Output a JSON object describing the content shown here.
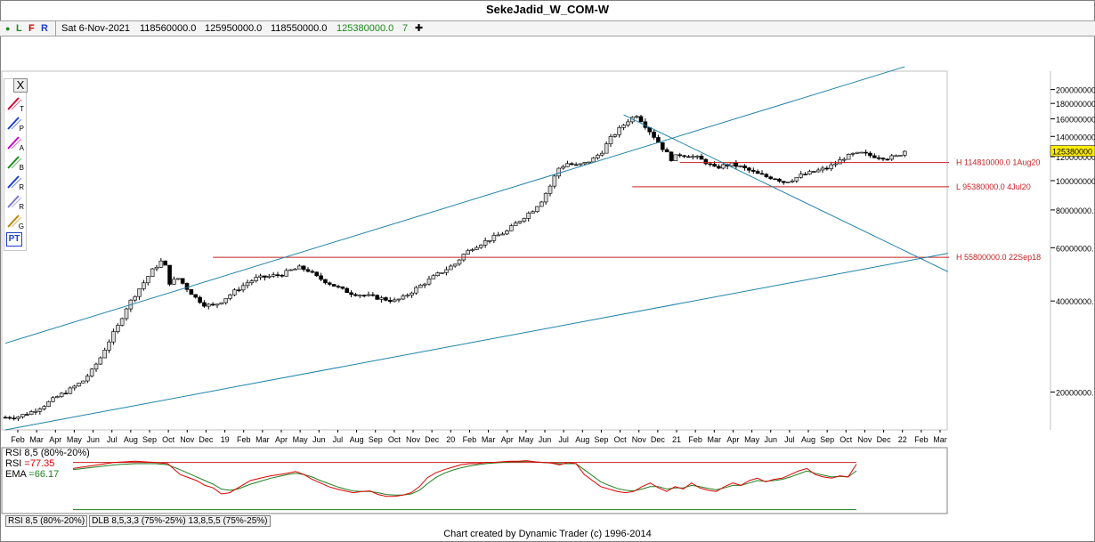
{
  "window": {
    "title": "SekeJadid_W_COM-W",
    "credit": "Chart created by Dynamic Trader  (c) 1996-2014"
  },
  "status_bar": {
    "flags": {
      "dot": "●",
      "l": "L",
      "f": "F",
      "r": "R"
    },
    "date": "Sat 6-Nov-2021",
    "open": "118560000.0",
    "high": "125950000.0",
    "low": "118550000.0",
    "close": "125380000.0",
    "count": "7",
    "plus": "✚"
  },
  "toolbox": {
    "close_label": "X",
    "tools": [
      {
        "icon": "trendline-tool-icon",
        "letter": "T",
        "color": "#cc0033"
      },
      {
        "icon": "parallel-lines-tool-icon",
        "letter": "P",
        "color": "#1a3fcc"
      },
      {
        "icon": "andrews-pitchfork-tool-icon",
        "letter": "A",
        "color": "#cc00cc"
      },
      {
        "icon": "time-band-tool-icon",
        "letter": "B",
        "color": "#1a8c1a"
      },
      {
        "icon": "retracement-tool-icon",
        "letter": "R",
        "color": "#1a3fcc"
      },
      {
        "icon": "ratio-lines-tool-icon",
        "letter": "R",
        "color": "#7777cc"
      },
      {
        "icon": "gann-fan-tool-icon",
        "letter": "G",
        "color": "#b8860b"
      },
      {
        "icon": "pt-tool-icon",
        "letter": "PT",
        "color": "#1a3fcc"
      }
    ]
  },
  "colors": {
    "channel": "#1f82a8",
    "level": "#c82020",
    "candle_up": "#d8d8d8",
    "candle_down": "#000000",
    "rsi": "#e00000",
    "ema": "#208020",
    "price_box": "#ffee00"
  },
  "annotations": {
    "level_h1": "H 114810000.0 1Aug20",
    "level_l1": "L 95380000.0 4Jul20",
    "level_h2": "H 55800000.0 22Sep18"
  },
  "rsi_panel": {
    "title": "RSI 8,5 (80%-20%)",
    "rsi_label": "RSI",
    "rsi_value": "=77.35",
    "ema_label": "EMA",
    "ema_value": "=66.17"
  },
  "bottom_tabs": [
    "RSI 8,5 (80%-20%)",
    "DLB 8,5,3,3 (75%-25%) 13,8,5,5 (75%-25%)"
  ],
  "chart_data": {
    "type": "candlestick",
    "title": "SekeJadid_W_COM-W",
    "y_scale": "log",
    "ylim": [
      15000000,
      230000000
    ],
    "y_ticks": [
      {
        "v": 200000000,
        "label": "200000000"
      },
      {
        "v": 180000000,
        "label": "180000000"
      },
      {
        "v": 160000000,
        "label": "160000000"
      },
      {
        "v": 140000000,
        "label": "140000000"
      },
      {
        "v": 120000000,
        "label": "120000000"
      },
      {
        "v": 100000000,
        "label": "100000000"
      },
      {
        "v": 80000000,
        "label": "80000000."
      },
      {
        "v": 60000000,
        "label": "60000000."
      },
      {
        "v": 40000000,
        "label": "40000000."
      },
      {
        "v": 20000000,
        "label": "20000000."
      }
    ],
    "last_price": {
      "value": 125380000,
      "label": "125380000"
    },
    "x_labels": [
      "Feb",
      "Mar",
      "Apr",
      "May",
      "Jun",
      "Jul",
      "Aug",
      "Sep",
      "Oct",
      "Nov",
      "Dec",
      "19",
      "Feb",
      "Mar",
      "Apr",
      "May",
      "Jun",
      "Jul",
      "Aug",
      "Sep",
      "Oct",
      "Nov",
      "Dec",
      "20",
      "Feb",
      "Mar",
      "Apr",
      "May",
      "Jun",
      "Jul",
      "Aug",
      "Sep",
      "Oct",
      "Nov",
      "Dec",
      "21",
      "Feb",
      "Mar",
      "Apr",
      "May",
      "Jun",
      "Jul",
      "Aug",
      "Sep",
      "Oct",
      "Nov",
      "Dec",
      "22",
      "Feb",
      "Mar"
    ],
    "weeks": 218,
    "series_close": [
      [
        0,
        16.5
      ],
      [
        3,
        16.6
      ],
      [
        6,
        17.2
      ],
      [
        9,
        18.1
      ],
      [
        12,
        19.3
      ],
      [
        15,
        20.4
      ],
      [
        18,
        21.8
      ],
      [
        20,
        23.5
      ],
      [
        22,
        26
      ],
      [
        24,
        29.5
      ],
      [
        26,
        33
      ],
      [
        28,
        38
      ],
      [
        30,
        42
      ],
      [
        32,
        46
      ],
      [
        34,
        50.5
      ],
      [
        36,
        54
      ],
      [
        37,
        52
      ],
      [
        38,
        46
      ],
      [
        40,
        47.5
      ],
      [
        42,
        44
      ],
      [
        44,
        41
      ],
      [
        46,
        39
      ],
      [
        48,
        38.5
      ],
      [
        50,
        40
      ],
      [
        52,
        42
      ],
      [
        54,
        44
      ],
      [
        56,
        46
      ],
      [
        58,
        47.5
      ],
      [
        60,
        48
      ],
      [
        62,
        48.5
      ],
      [
        64,
        49
      ],
      [
        66,
        50.5
      ],
      [
        68,
        51.5
      ],
      [
        70,
        50.5
      ],
      [
        72,
        48
      ],
      [
        74,
        46.5
      ],
      [
        76,
        45
      ],
      [
        78,
        43.5
      ],
      [
        80,
        42.5
      ],
      [
        82,
        42
      ],
      [
        84,
        41.5
      ],
      [
        86,
        41
      ],
      [
        88,
        40.5
      ],
      [
        90,
        40
      ],
      [
        92,
        41
      ],
      [
        94,
        43
      ],
      [
        96,
        45
      ],
      [
        98,
        47
      ],
      [
        100,
        49
      ],
      [
        102,
        51
      ],
      [
        104,
        53
      ],
      [
        106,
        57
      ],
      [
        108,
        60
      ],
      [
        110,
        62
      ],
      [
        112,
        64
      ],
      [
        114,
        66
      ],
      [
        116,
        68
      ],
      [
        118,
        72
      ],
      [
        120,
        76
      ],
      [
        122,
        80
      ],
      [
        124,
        86
      ],
      [
        126,
        96
      ],
      [
        128,
        110
      ],
      [
        130,
        114
      ],
      [
        132,
        112
      ],
      [
        134,
        114
      ],
      [
        136,
        118
      ],
      [
        138,
        125
      ],
      [
        140,
        138
      ],
      [
        142,
        148
      ],
      [
        144,
        158
      ],
      [
        146,
        165
      ],
      [
        148,
        152
      ],
      [
        150,
        140
      ],
      [
        152,
        128
      ],
      [
        154,
        118
      ],
      [
        156,
        122
      ],
      [
        158,
        121
      ],
      [
        160,
        119
      ],
      [
        162,
        115
      ],
      [
        164,
        110
      ],
      [
        166,
        112
      ],
      [
        168,
        113
      ],
      [
        170,
        111
      ],
      [
        172,
        108
      ],
      [
        174,
        105
      ],
      [
        176,
        103
      ],
      [
        178,
        102
      ],
      [
        180,
        99
      ],
      [
        182,
        101
      ],
      [
        184,
        104
      ],
      [
        186,
        106
      ],
      [
        188,
        108
      ],
      [
        190,
        110
      ],
      [
        192,
        114
      ],
      [
        194,
        119
      ],
      [
        196,
        122
      ],
      [
        198,
        123
      ],
      [
        200,
        121
      ],
      [
        202,
        120
      ],
      [
        204,
        119
      ],
      [
        206,
        120
      ],
      [
        208,
        125.4
      ]
    ],
    "levels": [
      {
        "value": 114810000,
        "label": "H 114810000.0 1Aug20"
      },
      {
        "value": 95380000,
        "label": "L 95380000.0 4Jul20"
      },
      {
        "value": 55800000,
        "label": "H 55800000.0 22Sep18"
      }
    ],
    "rsi": {
      "ylim": [
        0,
        100
      ],
      "bands": [
        80,
        20
      ],
      "rsi_last": 77.35,
      "ema_last": 66.17,
      "rsi": [
        [
          0,
          70
        ],
        [
          5,
          75
        ],
        [
          10,
          80
        ],
        [
          15,
          82
        ],
        [
          20,
          80
        ],
        [
          23,
          78
        ],
        [
          26,
          60
        ],
        [
          28,
          55
        ],
        [
          30,
          50
        ],
        [
          32,
          42
        ],
        [
          34,
          38
        ],
        [
          36,
          28
        ],
        [
          38,
          30
        ],
        [
          40,
          38
        ],
        [
          43,
          50
        ],
        [
          46,
          55
        ],
        [
          48,
          58
        ],
        [
          50,
          60
        ],
        [
          52,
          62
        ],
        [
          54,
          65
        ],
        [
          56,
          60
        ],
        [
          58,
          52
        ],
        [
          60,
          46
        ],
        [
          62,
          40
        ],
        [
          64,
          36
        ],
        [
          66,
          33
        ],
        [
          68,
          30
        ],
        [
          70,
          32
        ],
        [
          72,
          33
        ],
        [
          74,
          27
        ],
        [
          76,
          24
        ],
        [
          78,
          24
        ],
        [
          80,
          26
        ],
        [
          82,
          30
        ],
        [
          84,
          40
        ],
        [
          86,
          55
        ],
        [
          88,
          63
        ],
        [
          90,
          68
        ],
        [
          92,
          72
        ],
        [
          94,
          76
        ],
        [
          96,
          78
        ],
        [
          98,
          78
        ],
        [
          100,
          80
        ],
        [
          102,
          80
        ],
        [
          104,
          81
        ],
        [
          106,
          82
        ],
        [
          108,
          82
        ],
        [
          110,
          83
        ],
        [
          112,
          81
        ],
        [
          114,
          80
        ],
        [
          116,
          79
        ],
        [
          118,
          76
        ],
        [
          120,
          80
        ],
        [
          122,
          78
        ],
        [
          124,
          60
        ],
        [
          126,
          50
        ],
        [
          128,
          40
        ],
        [
          130,
          36
        ],
        [
          132,
          32
        ],
        [
          134,
          30
        ],
        [
          136,
          32
        ],
        [
          138,
          40
        ],
        [
          140,
          46
        ],
        [
          142,
          38
        ],
        [
          144,
          32
        ],
        [
          146,
          40
        ],
        [
          148,
          36
        ],
        [
          150,
          46
        ],
        [
          152,
          38
        ],
        [
          154,
          34
        ],
        [
          156,
          32
        ],
        [
          158,
          40
        ],
        [
          160,
          46
        ],
        [
          162,
          42
        ],
        [
          164,
          50
        ],
        [
          166,
          54
        ],
        [
          168,
          48
        ],
        [
          170,
          52
        ],
        [
          172,
          54
        ],
        [
          174,
          60
        ],
        [
          176,
          66
        ],
        [
          178,
          70
        ],
        [
          180,
          60
        ],
        [
          182,
          56
        ],
        [
          184,
          54
        ],
        [
          186,
          58
        ],
        [
          188,
          56
        ],
        [
          190,
          77
        ]
      ],
      "ema": [
        [
          0,
          68
        ],
        [
          5,
          72
        ],
        [
          10,
          76
        ],
        [
          15,
          78
        ],
        [
          20,
          78
        ],
        [
          23,
          76
        ],
        [
          26,
          68
        ],
        [
          28,
          62
        ],
        [
          30,
          56
        ],
        [
          32,
          50
        ],
        [
          34,
          44
        ],
        [
          36,
          36
        ],
        [
          38,
          34
        ],
        [
          40,
          36
        ],
        [
          43,
          44
        ],
        [
          46,
          50
        ],
        [
          48,
          54
        ],
        [
          50,
          57
        ],
        [
          52,
          60
        ],
        [
          54,
          62
        ],
        [
          56,
          60
        ],
        [
          58,
          56
        ],
        [
          60,
          50
        ],
        [
          62,
          45
        ],
        [
          64,
          40
        ],
        [
          66,
          36
        ],
        [
          68,
          33
        ],
        [
          70,
          32
        ],
        [
          72,
          32
        ],
        [
          74,
          30
        ],
        [
          76,
          27
        ],
        [
          78,
          26
        ],
        [
          80,
          26
        ],
        [
          82,
          28
        ],
        [
          84,
          34
        ],
        [
          86,
          45
        ],
        [
          88,
          55
        ],
        [
          90,
          62
        ],
        [
          92,
          67
        ],
        [
          94,
          71
        ],
        [
          96,
          74
        ],
        [
          98,
          76
        ],
        [
          100,
          78
        ],
        [
          102,
          79
        ],
        [
          104,
          80
        ],
        [
          106,
          81
        ],
        [
          108,
          81
        ],
        [
          110,
          82
        ],
        [
          112,
          81
        ],
        [
          114,
          80
        ],
        [
          116,
          79
        ],
        [
          118,
          78
        ],
        [
          120,
          78
        ],
        [
          122,
          78
        ],
        [
          124,
          68
        ],
        [
          126,
          58
        ],
        [
          128,
          48
        ],
        [
          130,
          42
        ],
        [
          132,
          37
        ],
        [
          134,
          34
        ],
        [
          136,
          33
        ],
        [
          138,
          36
        ],
        [
          140,
          40
        ],
        [
          142,
          40
        ],
        [
          144,
          36
        ],
        [
          146,
          38
        ],
        [
          148,
          38
        ],
        [
          150,
          42
        ],
        [
          152,
          40
        ],
        [
          154,
          37
        ],
        [
          156,
          35
        ],
        [
          158,
          38
        ],
        [
          160,
          42
        ],
        [
          162,
          42
        ],
        [
          164,
          46
        ],
        [
          166,
          50
        ],
        [
          168,
          49
        ],
        [
          170,
          50
        ],
        [
          172,
          52
        ],
        [
          174,
          56
        ],
        [
          176,
          61
        ],
        [
          178,
          66
        ],
        [
          180,
          62
        ],
        [
          182,
          59
        ],
        [
          184,
          56
        ],
        [
          186,
          57
        ],
        [
          188,
          56
        ],
        [
          190,
          66
        ]
      ]
    }
  }
}
